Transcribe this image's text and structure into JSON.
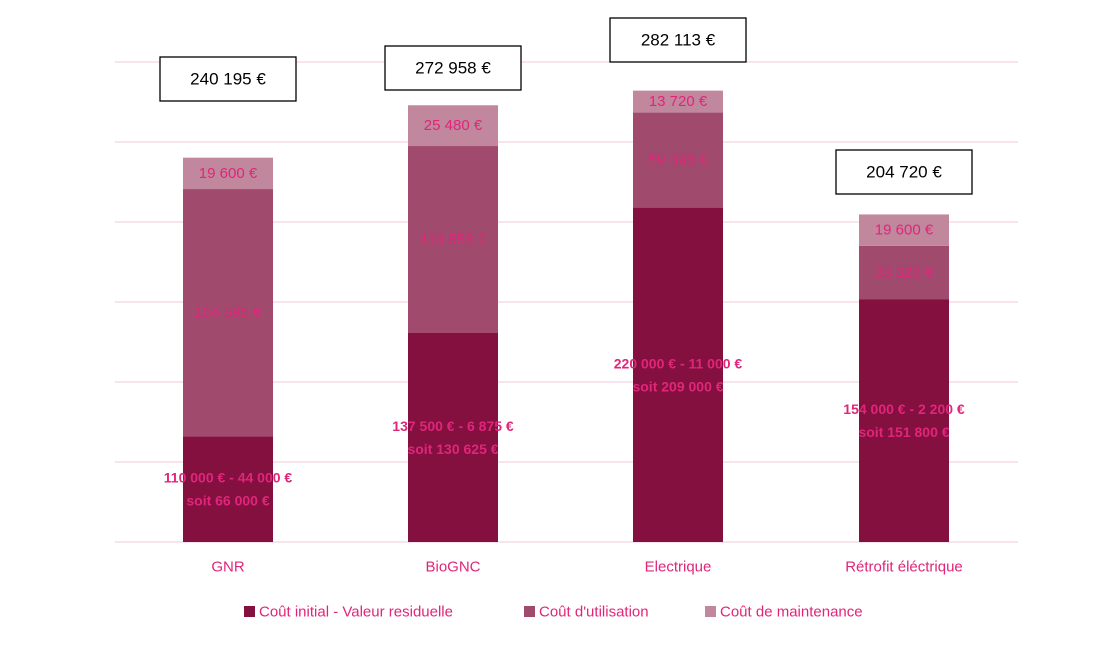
{
  "chart_data": {
    "type": "bar",
    "stacked": true,
    "categories": [
      "GNR",
      "BioGNC",
      "Electrique",
      "Rétrofit éléctrique"
    ],
    "series": [
      {
        "name": "Coût initial - Valeur residuelle",
        "color": "#84103f",
        "values": [
          66000,
          130625,
          209000,
          151800
        ],
        "labels": [
          [
            "110 000 €  - 44 000 €",
            "soit 66 000 €"
          ],
          [
            "137 500 € - 6 875 €",
            "soit 130 625 €"
          ],
          [
            "220 000 € - 11 000 €",
            "soit 209 000 €"
          ],
          [
            "154 000 € - 2 200 €",
            "soit 151 800 €"
          ]
        ]
      },
      {
        "name": "Coût d'utilisation",
        "color": "#a04a6d",
        "values": [
          154595,
          116853,
          59393,
          33320
        ],
        "labels": [
          "154 595 €",
          "116 853 €",
          "59 393 €",
          "33 320 €"
        ]
      },
      {
        "name": "Coût de maintenance",
        "color": "#c0879d",
        "values": [
          19600,
          25480,
          13720,
          19600
        ],
        "labels": [
          "19 600 €",
          "25 480 €",
          "13 720 €",
          "19 600 €"
        ]
      }
    ],
    "totals": [
      "240 195 €",
      "272 958 €",
      "282 113 €",
      "204 720 €"
    ],
    "ylim": [
      0,
      300000
    ],
    "grid": true,
    "legend_position": "bottom",
    "colors": {
      "label": "#e0257a",
      "gridline": "#f2c8da",
      "total_text": "#000000"
    }
  }
}
